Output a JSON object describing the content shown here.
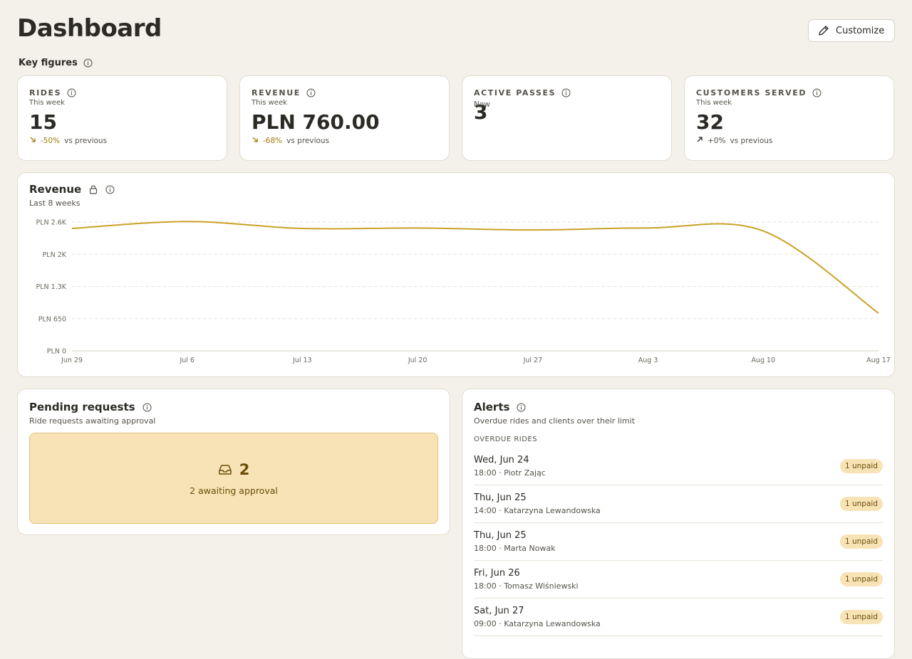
{
  "header": {
    "title": "Dashboard",
    "customize": "Customize"
  },
  "key_figures": {
    "title": "Key figures",
    "cards": [
      {
        "label": "RIDES",
        "sub": "This week",
        "value": "15",
        "change": "-50%",
        "note": "vs previous"
      },
      {
        "label": "REVENUE",
        "sub": "This week",
        "value": "PLN 760.00",
        "change": "-68%",
        "note": "vs previous"
      },
      {
        "label": "ACTIVE PASSES",
        "value": "3",
        "note": "Now"
      },
      {
        "label": "CUSTOMERS SERVED",
        "sub": "This week",
        "value": "32",
        "change": "+0%",
        "note": "vs previous"
      }
    ]
  },
  "chart_data": {
    "type": "line",
    "title": "Revenue",
    "subtitle": "Last 8 weeks",
    "categories": [
      "Jun 29",
      "Jul 6",
      "Jul 13",
      "Jul 20",
      "Jul 27",
      "Aug 3",
      "Aug 10",
      "Aug 17"
    ],
    "values": [
      2470,
      2610,
      2470,
      2480,
      2440,
      2480,
      2420,
      760
    ],
    "color": "#c9a227",
    "ylim": [
      0,
      2600
    ],
    "yticks": [
      {
        "value": 0,
        "label": "PLN 0"
      },
      {
        "value": 650,
        "label": "PLN 650"
      },
      {
        "value": 1300,
        "label": "PLN 1.3K"
      },
      {
        "value": 1950,
        "label": "PLN 2K"
      },
      {
        "value": 2600,
        "label": "PLN 2.6K"
      }
    ],
    "grid": true
  },
  "pending": {
    "title": "Pending requests",
    "subtitle": "Ride requests awaiting approval",
    "count": "2",
    "text": "2 awaiting approval"
  },
  "alerts": {
    "title": "Alerts",
    "subtitle": "Overdue rides and clients over their limit",
    "section": "OVERDUE RIDES",
    "items": [
      {
        "date": "Wed, Jun 24",
        "detail": "18:00 · Piotr Zając",
        "badge": "1 unpaid"
      },
      {
        "date": "Thu, Jun 25",
        "detail": "14:00 · Katarzyna Lewandowska",
        "badge": "1 unpaid"
      },
      {
        "date": "Thu, Jun 25",
        "detail": "18:00 · Marta Nowak",
        "badge": "1 unpaid"
      },
      {
        "date": "Fri, Jun 26",
        "detail": "18:00 · Tomasz Wiśniewski",
        "badge": "1 unpaid"
      },
      {
        "date": "Sat, Jun 27",
        "detail": "09:00 · Katarzyna Lewandowska",
        "badge": "1 unpaid"
      }
    ]
  }
}
